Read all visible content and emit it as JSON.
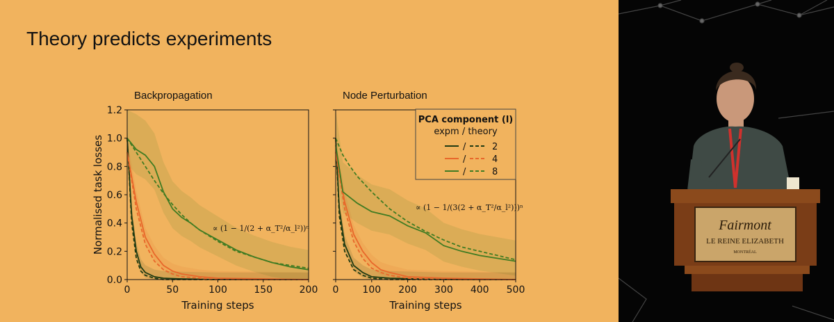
{
  "slide": {
    "title": "Theory predicts experiments"
  },
  "colors": {
    "slide_bg": "#f1b35e",
    "green_dark": "#1f3a12",
    "orange": "#e8672a",
    "green": "#3f7b22"
  },
  "chart_data": [
    {
      "type": "line",
      "title": "Backpropagation",
      "xlabel": "Training steps",
      "ylabel": "Normalised task losses",
      "xlim": [
        0,
        200
      ],
      "ylim": [
        0,
        1.2
      ],
      "xticks": [
        "0",
        "50",
        "100",
        "150",
        "200"
      ],
      "yticks": [
        "0.0",
        "0.2",
        "0.4",
        "0.6",
        "0.8",
        "1.0",
        "1.2"
      ],
      "annotation": "∝ (1 − 1/(2 + α_T²/α_l²))ⁿ",
      "series": [
        {
          "name": "2",
          "style": "solid",
          "color": "#1f3a12",
          "x": [
            0,
            5,
            10,
            15,
            20,
            30,
            40,
            60,
            100,
            200
          ],
          "y": [
            1.0,
            0.45,
            0.2,
            0.09,
            0.05,
            0.02,
            0.01,
            0.005,
            0.0,
            0.0
          ]
        },
        {
          "name": "2",
          "style": "dashed",
          "color": "#1f3a12",
          "x": [
            0,
            5,
            10,
            15,
            20,
            30,
            40,
            60,
            100,
            200
          ],
          "y": [
            1.0,
            0.4,
            0.15,
            0.06,
            0.03,
            0.01,
            0.0,
            0.0,
            0.0,
            0.0
          ]
        },
        {
          "name": "4",
          "style": "solid",
          "color": "#e8672a",
          "x": [
            0,
            10,
            20,
            30,
            40,
            50,
            60,
            80,
            100,
            200
          ],
          "y": [
            0.9,
            0.55,
            0.3,
            0.18,
            0.1,
            0.06,
            0.04,
            0.02,
            0.01,
            0.0
          ]
        },
        {
          "name": "4",
          "style": "dashed",
          "color": "#e8672a",
          "x": [
            0,
            10,
            20,
            30,
            40,
            50,
            60,
            80,
            100,
            200
          ],
          "y": [
            0.9,
            0.5,
            0.25,
            0.13,
            0.07,
            0.04,
            0.02,
            0.01,
            0.0,
            0.0
          ]
        },
        {
          "name": "8",
          "style": "solid",
          "color": "#3f7b22",
          "x": [
            0,
            10,
            20,
            30,
            40,
            50,
            60,
            70,
            80,
            100,
            120,
            140,
            160,
            180,
            200
          ],
          "y": [
            1.0,
            0.92,
            0.88,
            0.8,
            0.62,
            0.5,
            0.44,
            0.4,
            0.35,
            0.28,
            0.21,
            0.16,
            0.12,
            0.09,
            0.07
          ]
        },
        {
          "name": "8",
          "style": "dashed",
          "color": "#3f7b22",
          "x": [
            0,
            10,
            20,
            30,
            40,
            50,
            60,
            70,
            80,
            100,
            120,
            140,
            160,
            180,
            200
          ],
          "y": [
            1.0,
            0.9,
            0.8,
            0.7,
            0.61,
            0.53,
            0.46,
            0.4,
            0.35,
            0.27,
            0.2,
            0.16,
            0.12,
            0.1,
            0.08
          ]
        }
      ]
    },
    {
      "type": "line",
      "title": "Node Perturbation",
      "xlabel": "Training steps",
      "ylabel": "",
      "xlim": [
        0,
        500
      ],
      "ylim": [
        0,
        1.2
      ],
      "xticks": [
        "0",
        "100",
        "200",
        "300",
        "400",
        "500"
      ],
      "yticks": [],
      "annotation": "∝ (1 − 1/(3(2 + α_T²/α_l²)))ⁿ",
      "legend": {
        "title": "PCA component (l)",
        "subtitle": "expm / theory",
        "entries": [
          "/",
          "2",
          "/",
          "4",
          "/",
          "8"
        ],
        "placement": "top-right"
      },
      "series": [
        {
          "name": "2",
          "style": "solid",
          "color": "#1f3a12",
          "x": [
            0,
            10,
            25,
            50,
            75,
            100,
            150,
            300,
            500
          ],
          "y": [
            1.0,
            0.5,
            0.25,
            0.1,
            0.05,
            0.02,
            0.01,
            0.0,
            0.0
          ]
        },
        {
          "name": "2",
          "style": "dashed",
          "color": "#1f3a12",
          "x": [
            0,
            10,
            25,
            50,
            75,
            100,
            150,
            300,
            500
          ],
          "y": [
            1.0,
            0.45,
            0.2,
            0.07,
            0.03,
            0.01,
            0.0,
            0.0,
            0.0
          ]
        },
        {
          "name": "4",
          "style": "solid",
          "color": "#e8672a",
          "x": [
            0,
            25,
            50,
            75,
            100,
            125,
            150,
            200,
            300,
            500
          ],
          "y": [
            0.9,
            0.55,
            0.32,
            0.2,
            0.12,
            0.07,
            0.05,
            0.02,
            0.01,
            0.0
          ]
        },
        {
          "name": "4",
          "style": "dashed",
          "color": "#e8672a",
          "x": [
            0,
            25,
            50,
            75,
            100,
            125,
            150,
            200,
            300,
            500
          ],
          "y": [
            0.9,
            0.5,
            0.27,
            0.15,
            0.08,
            0.05,
            0.03,
            0.01,
            0.0,
            0.0
          ]
        },
        {
          "name": "8",
          "style": "solid",
          "color": "#3f7b22",
          "x": [
            0,
            20,
            40,
            60,
            100,
            150,
            200,
            250,
            300,
            350,
            400,
            450,
            500
          ],
          "y": [
            0.95,
            0.62,
            0.58,
            0.54,
            0.48,
            0.45,
            0.38,
            0.33,
            0.24,
            0.2,
            0.17,
            0.15,
            0.13
          ]
        },
        {
          "name": "8",
          "style": "dashed",
          "color": "#3f7b22",
          "x": [
            0,
            20,
            40,
            60,
            100,
            150,
            200,
            250,
            300,
            350,
            400,
            450,
            500
          ],
          "y": [
            1.0,
            0.88,
            0.8,
            0.73,
            0.62,
            0.5,
            0.41,
            0.34,
            0.28,
            0.23,
            0.2,
            0.17,
            0.14
          ]
        }
      ]
    }
  ],
  "podium": {
    "brand": "Fairmont",
    "line2": "LE REINE ELIZABETH",
    "line3": "MONTRÉAL"
  }
}
